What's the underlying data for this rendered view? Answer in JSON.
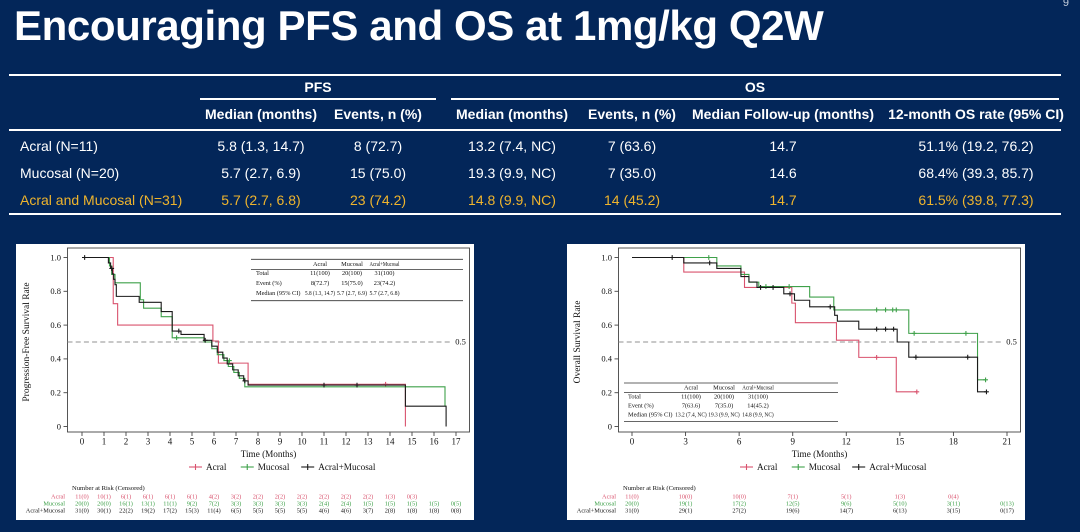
{
  "slide": {
    "title": "Encouraging PFS and OS at 1mg/kg Q2W",
    "page_number": "9",
    "background_color": "#032659",
    "highlight_color": "#efb42d"
  },
  "summary_table": {
    "group_headers": [
      {
        "label": "PFS"
      },
      {
        "label": "OS"
      }
    ],
    "column_headers": [
      "Median (months)",
      "Events, n (%)",
      "Median (months)",
      "Events, n (%)",
      "Median Follow-up (months)",
      "12-month OS rate (95% CI)"
    ],
    "rows": [
      {
        "cells": [
          "Acral (N=11)",
          "5.8 (1.3, 14.7)",
          "8 (72.7)",
          "13.2 (7.4, NC)",
          "7 (63.6)",
          "14.7",
          "51.1% (19.2, 76.2)"
        ],
        "highlight": false
      },
      {
        "cells": [
          "Mucosal (N=20)",
          "5.7 (2.7, 6.9)",
          "15 (75.0)",
          "19.3 (9.9, NC)",
          "7 (35.0)",
          "14.6",
          "68.4% (39.3, 85.7)"
        ],
        "highlight": false
      },
      {
        "cells": [
          "Acral and Mucosal (N=31)",
          "5.7 (2.7, 6.8)",
          "23 (74.2)",
          "14.8 (9.9, NC)",
          "14 (45.2)",
          "14.7",
          "61.5% (39.8, 77.3)"
        ],
        "highlight": true
      }
    ]
  },
  "chart_data": [
    {
      "id": "pfs",
      "type": "line",
      "subtype": "kaplan-meier-step",
      "ylabel": "Progression-Free Survival Rate",
      "xlabel": "Time (Months)",
      "xticks": [
        0,
        1,
        2,
        3,
        4,
        5,
        6,
        7,
        8,
        9,
        10,
        11,
        12,
        13,
        14,
        15,
        16,
        17
      ],
      "yticks": [
        0,
        0.2,
        0.4,
        0.6,
        0.8,
        1.0
      ],
      "xlim": [
        0,
        17.6
      ],
      "ylim": [
        0,
        1.03
      ],
      "reference_line": {
        "y": 0.5,
        "label": "0.5"
      },
      "series": [
        {
          "name": "Acral",
          "color": "#d9536e",
          "steps": [
            [
              0,
              1
            ],
            [
              1.42,
              0.727
            ],
            [
              1.62,
              0.6
            ],
            [
              5.95,
              0.506
            ],
            [
              6.2,
              0.375
            ],
            [
              7.55,
              0.25
            ],
            [
              14.7,
              0
            ]
          ],
          "end": 14.7,
          "censors": [
            [
              13.8,
              0.25
            ]
          ]
        },
        {
          "name": "Mucosal",
          "color": "#3fa14a",
          "steps": [
            [
              0,
              1
            ],
            [
              1.25,
              0.95
            ],
            [
              1.35,
              0.9
            ],
            [
              1.5,
              0.85
            ],
            [
              2.65,
              0.75
            ],
            [
              2.8,
              0.7
            ],
            [
              3.6,
              0.65
            ],
            [
              4.1,
              0.525
            ],
            [
              5.55,
              0.5
            ],
            [
              5.9,
              0.46
            ],
            [
              6.15,
              0.425
            ],
            [
              6.45,
              0.39
            ],
            [
              6.65,
              0.355
            ],
            [
              6.9,
              0.32
            ],
            [
              7.15,
              0.285
            ],
            [
              7.4,
              0.235
            ],
            [
              16.5,
              0.12
            ]
          ],
          "end": 16.5,
          "censors": [
            [
              4.3,
              0.525
            ],
            [
              6.7,
              0.39
            ]
          ]
        },
        {
          "name": "Acral+Mucosal",
          "color": "#1a1a1a",
          "steps": [
            [
              0,
              1
            ],
            [
              1.2,
              0.968
            ],
            [
              1.3,
              0.935
            ],
            [
              1.38,
              0.903
            ],
            [
              1.44,
              0.871
            ],
            [
              1.5,
              0.839
            ],
            [
              1.56,
              0.77
            ],
            [
              2.6,
              0.735
            ],
            [
              3.6,
              0.68
            ],
            [
              4.1,
              0.565
            ],
            [
              4.5,
              0.545
            ],
            [
              5.55,
              0.51
            ],
            [
              5.9,
              0.475
            ],
            [
              6.15,
              0.44
            ],
            [
              6.4,
              0.405
            ],
            [
              6.6,
              0.37
            ],
            [
              6.85,
              0.335
            ],
            [
              7.1,
              0.3
            ],
            [
              7.35,
              0.27
            ],
            [
              7.55,
              0.245
            ],
            [
              14.7,
              0.12
            ],
            [
              16.55,
              0
            ]
          ],
          "end": 16.55,
          "censors": [
            [
              0.12,
              1
            ],
            [
              1.35,
              0.935
            ],
            [
              4.4,
              0.565
            ],
            [
              5.6,
              0.51
            ],
            [
              7.4,
              0.27
            ],
            [
              11.0,
              0.245
            ],
            [
              12.5,
              0.245
            ]
          ]
        }
      ],
      "inset_table": {
        "position": "top-right",
        "col_headers": [
          "Acral",
          "Mucosal",
          "Acral+Mucosal"
        ],
        "rows": [
          [
            "Total",
            "11(100)",
            "20(100)",
            "31(100)"
          ],
          [
            "Event (%)",
            "8(72.7)",
            "15(75.0)",
            "23(74.2)"
          ],
          [
            "Median (95% CI)",
            "5.8 (1.3, 14.7)",
            "5.7 (2.7, 6.9)",
            "5.7 (2.7, 6.8)"
          ]
        ]
      },
      "legend": [
        "Acral",
        "Mucosal",
        "Acral+Mucosal"
      ],
      "risk_table": {
        "title": "Number at Risk (Censored)",
        "month_step": 1,
        "rows": [
          {
            "name": "Acral",
            "values": [
              "11(0)",
              "10(1)",
              "6(1)",
              "6(1)",
              "6(1)",
              "6(1)",
              "4(2)",
              "3(2)",
              "2(2)",
              "2(2)",
              "2(2)",
              "2(2)",
              "2(2)",
              "2(2)",
              "1(3)",
              "0(3)"
            ]
          },
          {
            "name": "Mucosal",
            "values": [
              "20(0)",
              "20(0)",
              "16(1)",
              "13(1)",
              "11(1)",
              "9(2)",
              "7(2)",
              "3(3)",
              "3(3)",
              "3(3)",
              "3(3)",
              "2(4)",
              "2(4)",
              "1(5)",
              "1(5)",
              "1(5)",
              "1(5)",
              "0(5)"
            ]
          },
          {
            "name": "Acral+Mucosal",
            "values": [
              "31(0)",
              "30(1)",
              "22(2)",
              "19(2)",
              "17(2)",
              "15(3)",
              "11(4)",
              "6(5)",
              "5(5)",
              "5(5)",
              "5(5)",
              "4(6)",
              "4(6)",
              "3(7)",
              "2(8)",
              "1(8)",
              "1(8)",
              "0(8)"
            ]
          }
        ]
      }
    },
    {
      "id": "os",
      "type": "line",
      "subtype": "kaplan-meier-step",
      "ylabel": "Overall Survival Rate",
      "xlabel": "Time (Months)",
      "xticks": [
        0,
        3,
        6,
        9,
        12,
        15,
        18,
        21
      ],
      "yticks": [
        0,
        0.2,
        0.4,
        0.6,
        0.8,
        1.0
      ],
      "xlim": [
        0,
        21.75
      ],
      "ylim": [
        0,
        1.03
      ],
      "reference_line": {
        "y": 0.5,
        "label": "0.5"
      },
      "series": [
        {
          "name": "Acral",
          "color": "#d9536e",
          "steps": [
            [
              0,
              1
            ],
            [
              2.9,
              0.914
            ],
            [
              6.3,
              0.823
            ],
            [
              8.95,
              0.73
            ],
            [
              9.15,
              0.614
            ],
            [
              11.45,
              0.511
            ],
            [
              12.7,
              0.409
            ],
            [
              14.8,
              0.205
            ]
          ],
          "end": 15.95,
          "censors": [
            [
              13.7,
              0.409
            ],
            [
              15.95,
              0.205
            ]
          ]
        },
        {
          "name": "Mucosal",
          "color": "#3fa14a",
          "steps": [
            [
              0,
              1
            ],
            [
              4.75,
              0.95
            ],
            [
              6.1,
              0.9
            ],
            [
              6.55,
              0.854
            ],
            [
              7.1,
              0.828
            ],
            [
              9.95,
              0.766
            ],
            [
              11.3,
              0.69
            ],
            [
              15.5,
              0.551
            ],
            [
              19.35,
              0.276
            ]
          ],
          "end": 19.8,
          "censors": [
            [
              4.3,
              1
            ],
            [
              7.5,
              0.828
            ],
            [
              8.8,
              0.828
            ],
            [
              13.7,
              0.69
            ],
            [
              14.2,
              0.69
            ],
            [
              14.6,
              0.69
            ],
            [
              14.8,
              0.69
            ],
            [
              15.8,
              0.551
            ],
            [
              18.7,
              0.551
            ],
            [
              19.8,
              0.276
            ]
          ]
        },
        {
          "name": "Acral+Mucosal",
          "color": "#1a1a1a",
          "steps": [
            [
              0,
              1
            ],
            [
              2.9,
              0.968
            ],
            [
              4.75,
              0.935
            ],
            [
              6.1,
              0.887
            ],
            [
              6.55,
              0.855
            ],
            [
              7.0,
              0.823
            ],
            [
              8.5,
              0.785
            ],
            [
              9.1,
              0.747
            ],
            [
              9.95,
              0.708
            ],
            [
              11.35,
              0.658
            ],
            [
              11.5,
              0.623
            ],
            [
              12.7,
              0.576
            ],
            [
              14.85,
              0.5
            ],
            [
              15.5,
              0.41
            ],
            [
              19.35,
              0.205
            ]
          ],
          "end": 19.85,
          "censors": [
            [
              2.25,
              1
            ],
            [
              4.35,
              0.968
            ],
            [
              7.2,
              0.823
            ],
            [
              7.9,
              0.823
            ],
            [
              8.85,
              0.785
            ],
            [
              11.1,
              0.708
            ],
            [
              13.7,
              0.576
            ],
            [
              14.2,
              0.576
            ],
            [
              14.65,
              0.576
            ],
            [
              15.9,
              0.41
            ],
            [
              18.8,
              0.41
            ],
            [
              19.85,
              0.205
            ]
          ]
        }
      ],
      "inset_table": {
        "position": "bottom-left",
        "col_headers": [
          "Acral",
          "Mucosal",
          "Acral+Mucosal"
        ],
        "rows": [
          [
            "Total",
            "11(100)",
            "20(100)",
            "31(100)"
          ],
          [
            "Event (%)",
            "7(63.6)",
            "7(35.0)",
            "14(45.2)"
          ],
          [
            "Median (95% CI)",
            "13.2 (7.4, NC)",
            "19.3 (9.9, NC)",
            "14.8 (9.9, NC)"
          ]
        ]
      },
      "legend": [
        "Acral",
        "Mucosal",
        "Acral+Mucosal"
      ],
      "risk_table": {
        "title": "Number at Risk (Censored)",
        "month_step": 3,
        "rows": [
          {
            "name": "Acral",
            "values": [
              "11(0)",
              "10(0)",
              "10(0)",
              "7(1)",
              "5(1)",
              "1(3)",
              "0(4)"
            ]
          },
          {
            "name": "Mucosal",
            "values": [
              "20(0)",
              "19(1)",
              "17(2)",
              "12(5)",
              "9(6)",
              "5(10)",
              "3(11)",
              "0(13)"
            ]
          },
          {
            "name": "Acral+Mucosal",
            "values": [
              "31(0)",
              "29(1)",
              "27(2)",
              "19(6)",
              "14(7)",
              "6(13)",
              "3(15)",
              "0(17)"
            ]
          }
        ]
      }
    }
  ]
}
